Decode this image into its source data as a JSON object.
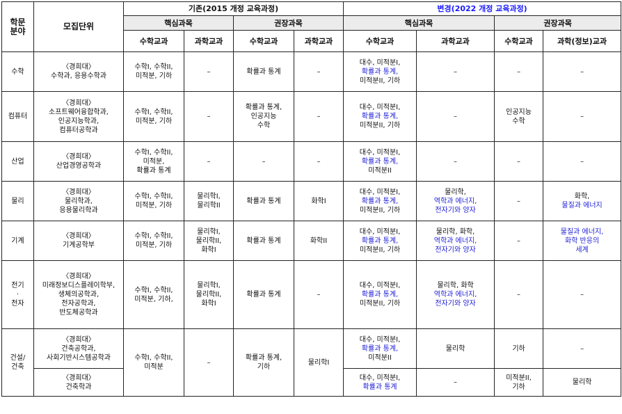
{
  "header": {
    "field": [
      "학문",
      "분야"
    ],
    "unit": "모집단위",
    "old_title": "기존(2015 개정 교육과정)",
    "new_title": "변경(2022 개정 교육과정)",
    "core": "핵심과목",
    "recommended": "권장과목",
    "math": "수학교과",
    "science": "과학교과",
    "science_info": "과학(정보)교과"
  },
  "colors": {
    "new_accent": "#1f1fd6",
    "border": "#222222"
  },
  "rows": [
    {
      "field": [
        "수학"
      ],
      "unit": [
        "〈경희대〉",
        "수학과, 응용수학과"
      ],
      "old_core_math": [
        "수학I, 수학II,",
        "미적분, 기하"
      ],
      "old_core_sci": [
        "–"
      ],
      "old_rec_math": [
        "확률과 통계"
      ],
      "old_rec_sci": [
        "–"
      ],
      "new_core_math": [
        {
          "t": "대수, 미적분I,",
          "b": false
        },
        {
          "t": "확률과 통계,",
          "b": true
        },
        {
          "t": "미적분II, 기하",
          "b": false
        }
      ],
      "new_core_sci": [
        {
          "t": "–",
          "b": false
        }
      ],
      "new_rec_math": [
        {
          "t": "–",
          "b": false
        }
      ],
      "new_rec_sci": [
        {
          "t": "–",
          "b": false
        }
      ]
    },
    {
      "field": [
        "컴퓨터"
      ],
      "unit": [
        "〈경희대〉",
        "소프트웨어융합학과,",
        "인공지능학과,",
        "컴퓨터공학과"
      ],
      "old_core_math": [
        "수학I, 수학II,",
        "미적분, 기하"
      ],
      "old_core_sci": [
        "–"
      ],
      "old_rec_math": [
        "확률과 통계,",
        "인공지능",
        "수학"
      ],
      "old_rec_sci": [
        "–"
      ],
      "new_core_math": [
        {
          "t": "대수, 미적분I,",
          "b": false
        },
        {
          "t": "확률과 통계,",
          "b": true
        },
        {
          "t": "미적분II, 기하",
          "b": false
        }
      ],
      "new_core_sci": [
        {
          "t": "–",
          "b": false
        }
      ],
      "new_rec_math": [
        {
          "t": "인공지능",
          "b": false
        },
        {
          "t": "수학",
          "b": false
        }
      ],
      "new_rec_sci": [
        {
          "t": "–",
          "b": false
        }
      ]
    },
    {
      "field": [
        "산업"
      ],
      "unit": [
        "〈경희대〉",
        "산업경영공학과"
      ],
      "old_core_math": [
        "수학I, 수학II,",
        "미적분,",
        "확률과 통계"
      ],
      "old_core_sci": [
        "–"
      ],
      "old_rec_math": [
        "–"
      ],
      "old_rec_sci": [
        "–"
      ],
      "new_core_math": [
        {
          "t": "대수, 미적분I,",
          "b": false
        },
        {
          "t": "확률과 통계,",
          "b": true
        },
        {
          "t": "미적분II",
          "b": false
        }
      ],
      "new_core_sci": [
        {
          "t": "–",
          "b": false
        }
      ],
      "new_rec_math": [
        {
          "t": "–",
          "b": false
        }
      ],
      "new_rec_sci": [
        {
          "t": "–",
          "b": false
        }
      ]
    },
    {
      "field": [
        "물리"
      ],
      "unit": [
        "〈경희대〉",
        "물리학과,",
        "응용물리학과"
      ],
      "old_core_math": [
        "수학I, 수학II,",
        "미적분, 기하"
      ],
      "old_core_sci": [
        "물리학I,",
        "물리학II"
      ],
      "old_rec_math": [
        "확률과 통계"
      ],
      "old_rec_sci": [
        "화학I"
      ],
      "new_core_math": [
        {
          "t": "대수, 미적분I,",
          "b": false
        },
        {
          "t": "확률과 통계,",
          "b": true
        },
        {
          "t": "미적분II, 기하",
          "b": false
        }
      ],
      "new_core_sci": [
        {
          "t": "물리학,",
          "b": false
        },
        {
          "t": "역학과 에너지,",
          "b": true
        },
        {
          "t": "전자기와 양자",
          "b": true
        }
      ],
      "new_rec_math": [
        {
          "t": "–",
          "b": false
        }
      ],
      "new_rec_sci": [
        {
          "t": "화학,",
          "b": false
        },
        {
          "t": "물질과 에너지",
          "b": true
        }
      ]
    },
    {
      "field": [
        "기계"
      ],
      "unit": [
        "〈경희대〉",
        "기계공학부"
      ],
      "old_core_math": [
        "수학I, 수학II,",
        "미적분, 기하"
      ],
      "old_core_sci": [
        "물리학I,",
        "물리학II,",
        "화학I"
      ],
      "old_rec_math": [
        "확률과 통계"
      ],
      "old_rec_sci": [
        "화학II"
      ],
      "new_core_math": [
        {
          "t": "대수, 미적분I,",
          "b": false
        },
        {
          "t": "확률과 통계,",
          "b": true
        },
        {
          "t": "미적분II, 기하",
          "b": false
        }
      ],
      "new_core_sci": [
        {
          "t": "물리학, 화학,",
          "b": false
        },
        {
          "t": "역학과 에너지,",
          "b": true
        },
        {
          "t": "전자기와 양자",
          "b": true
        }
      ],
      "new_rec_math": [
        {
          "t": "–",
          "b": false
        }
      ],
      "new_rec_sci": [
        {
          "t": "물질과 에너지,",
          "b": true
        },
        {
          "t": "화학 반응의",
          "b": true
        },
        {
          "t": "세계",
          "b": true
        }
      ]
    },
    {
      "field": [
        "전기",
        "·",
        "전자"
      ],
      "unit": [
        "〈경희대〉",
        "미래정보디스플레이학부,",
        "생체의공학과,",
        "전자공학과,",
        "반도체공학과"
      ],
      "old_core_math": [
        "수학I, 수학II,",
        "미적분, 기하,"
      ],
      "old_core_sci": [
        "물리학I,",
        "물리학II,",
        "화학I"
      ],
      "old_rec_math": [
        "확률과 통계"
      ],
      "old_rec_sci": [
        "–"
      ],
      "new_core_math": [
        {
          "t": "대수, 미적분I,",
          "b": false
        },
        {
          "t": "확률과 통계,",
          "b": true
        },
        {
          "t": "미적분II, 기하",
          "b": false
        }
      ],
      "new_core_sci": [
        {
          "t": "물리학, 화학",
          "b": false
        },
        {
          "t": "역학과 에너지,",
          "b": true
        },
        {
          "t": "전자기와 양자",
          "b": true
        }
      ],
      "new_rec_math": [
        {
          "t": "–",
          "b": false
        }
      ],
      "new_rec_sci": [
        {
          "t": "–",
          "b": false
        }
      ]
    }
  ],
  "construction": {
    "field": [
      "건설/",
      "건축"
    ],
    "unit_a": [
      "〈경희대〉",
      "건축공학과,",
      "사회기반시스템공학과"
    ],
    "unit_b": [
      "〈경희대〉",
      "건축학과"
    ],
    "old_core_math": [
      "수학I, 수학II,",
      "미적분"
    ],
    "old_core_sci": [
      "–"
    ],
    "old_rec_math": [
      "확률과 통계,",
      "기하"
    ],
    "old_rec_sci": [
      "물리학I"
    ],
    "a_new_core_math": [
      {
        "t": "대수, 미적분I,",
        "b": false
      },
      {
        "t": "확률과 통계,",
        "b": true
      },
      {
        "t": "미적분II",
        "b": false
      }
    ],
    "a_new_core_sci": [
      {
        "t": "물리학",
        "b": false
      }
    ],
    "a_new_rec_math": [
      {
        "t": "기하",
        "b": false
      }
    ],
    "a_new_rec_sci": [
      {
        "t": "–",
        "b": false
      }
    ],
    "b_new_core_math": [
      {
        "t": "대수, 미적분I,",
        "b": false
      },
      {
        "t": "확률과 통계",
        "b": true
      }
    ],
    "b_new_core_sci": [
      {
        "t": "–",
        "b": false
      }
    ],
    "b_new_rec_math": [
      {
        "t": "미적분II,",
        "b": false
      },
      {
        "t": "기하",
        "b": false
      }
    ],
    "b_new_rec_sci": [
      {
        "t": "물리학",
        "b": false
      }
    ]
  }
}
